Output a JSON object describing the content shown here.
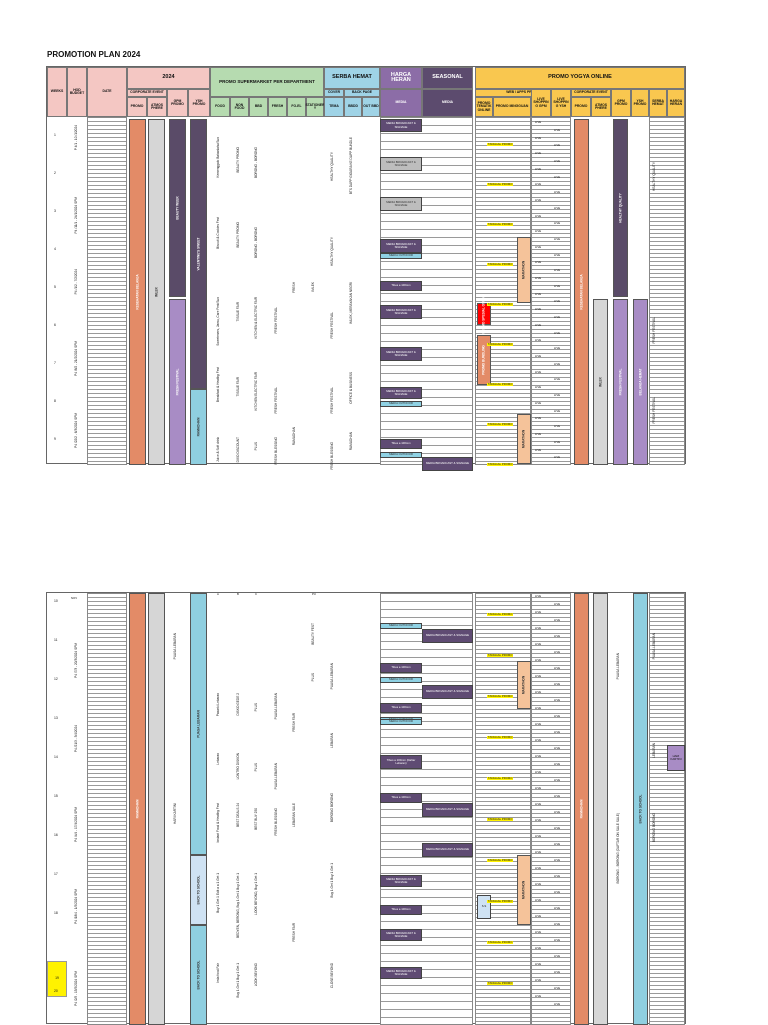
{
  "title": "PROMOTION PLAN 2024",
  "colors": {
    "header_pink": "#f4c7c3",
    "header_green": "#b6dbb0",
    "header_blue": "#9fd3e6",
    "header_purple": "#8c6da7",
    "header_dark": "#5c4b6e",
    "header_yellow": "#f9c74f",
    "bar_orange": "#e38b67",
    "bar_grey": "#d6d6d6",
    "bar_dark": "#5a4b68",
    "bar_lilac": "#a88cc5",
    "bar_teal": "#8fcfe0",
    "bar_peach": "#f5c39a",
    "highlight_yellow": "#fff200",
    "box_purple": "#5f4b73",
    "box_grey": "#bdbdbd",
    "box_teal": "#8fd1e3",
    "box_red": "#ff0000"
  },
  "headers": {
    "weeks": "WEEKS",
    "hod_budget": "HOD BUDGET",
    "date": "DATE",
    "year": "2024",
    "corporate_event": "CORPORATE EVENT",
    "promo": "PROMO",
    "atmosphere": "ATMOS PHERE",
    "gpm_promo": "GPM PROMO",
    "ysh_promo": "YSH PROMO",
    "promo_supermarket": "PROMO SUPERMARKET PER DEPARTMENT",
    "food": "FOOD",
    "non_food": "NON FOOD",
    "bbd": "BBD",
    "fresh": "FRESH",
    "fo_el": "FO-EL",
    "stationery": "STATIONER Y",
    "serba_hemat": "SERBA HEMAT",
    "cover": "COVER",
    "back_page": "BACK PAGE",
    "tema": "TEMA",
    "bbd_col": "BBDD",
    "out_bbd": "OUT BBD",
    "harga_heran": "HARGA HERAN",
    "seasonal": "SEASONAL",
    "media": "MEDIA",
    "promo_yogya_online": "PROMO YOGYA ONLINE",
    "web_apps_promo": "WEB / APPS PROMO",
    "promo_tematik_online": "PROMO TEMATIK ONLINE",
    "promo_mingguan": "PROMO MINGGUAN",
    "live_shopping_gpm": "LIVE SHOPPIN G GPM",
    "live_shopping_ysh": "LIVE SHOPPIN G YSH",
    "corporate_event_2": "CORPORATE EVENT",
    "promo_2": "PROMO",
    "atmosphere_2": "ATMOS PHERE",
    "gpm_promo_2": "GPM PROMO",
    "ysh_promo_2": "YSH PROMO",
    "serba_hemat_2": "SERBA HEMAT",
    "harga_heran_2": "HARGA HERAN"
  },
  "weeks_top": [
    "1",
    "2",
    "3",
    "4",
    "5",
    "6",
    "7",
    "8",
    "9"
  ],
  "weeks_bottom": [
    "10",
    "11",
    "12",
    "13",
    "14",
    "15",
    "16",
    "17",
    "18",
    "19",
    "20"
  ],
  "budgets_top": [
    "P 4/1 - 10 /1/2024",
    "P4 /11/1 - 24/1/2024 SPM",
    "P4 /1/2 - 7/2/2024",
    "P4 /8/2 - 21/2/2024 SPM",
    "P4 /22/2 - 6/3/2024 SPM"
  ],
  "budgets_bottom": [
    "P4 /7/3 - 20/3/2024 SPM",
    "P4 /21/3 - 3/4/2024",
    "P4 /4/4 - 17/4/2024 SPM",
    "P4 /18/4 - 1/5/2024 SPM",
    "P4 /2/5 - 15/5/2024 SPM"
  ],
  "vertical_labels": {
    "kesehatan_belanja": "KESEHATAN BELANJA",
    "beauty_week": "BEAUTY WEEK",
    "imlek": "IMLEK",
    "valentine": "VALENTINE'S SWEET",
    "fresh_festival": "FRESH FESTIVAL",
    "ramadhan": "RAMADHAN",
    "puasa_lebaran": "PUASA LEBARAN",
    "back_to_school": "BACK TO SCHOOL",
    "hari_kartini": "HARI KARTINI",
    "harbolnas": "HARI BELANJA",
    "healthy_quality": "HEALTHY QUALITY",
    "marathon": "MARATHON",
    "promo_bundling": "PROMO BUNDLING",
    "belanja_hemat": "BELANJA HEMAT",
    "fresh_festival_2": "FRESH FESTIVAL",
    "back_to_school_2": "BACK TO SCHOOL",
    "puasa_lebaran_2": "PUASA LEBARAN"
  },
  "media_items": {
    "media_broadcast": "MEDIA BROADCAST & SIGNAGE",
    "media_outdoor": "MEDIA OUTDOOR",
    "tibes": "Tibes a 100mm",
    "tibes_lebaran": "Tibes a 100mm (Daftar Lebaran)",
    "media_online": "MEDIA ONLINE",
    "live": "LIVE",
    "tanggal_promo": "TANGGAL PROMO",
    "promo_spesial": "PROMO SPESIAL ONLINE",
    "ss": "S.S"
  },
  "dept_items_top": {
    "food_1": "Kemenggalo Bahanlahu/Sun",
    "food_2": "Biscuit & Cookies Fest",
    "food_3": "Sweeteners, Jamu, Care Fest/Sun",
    "food_4": "Breakfast & Healthy Fest",
    "food_5": "Juice & Soft drink",
    "nonfood_1": "BEAUTY PROMO",
    "nonfood_2": "BEAUTY PROMO",
    "nonfood_3": "TISSUE FAIR",
    "nonfood_4": "TISSUE FAIR",
    "nonfood_5": "DIXO DISCOUNT",
    "bbd_1": "BORONG - BORONG",
    "bbd_2": "BORONG - BORONG",
    "bbd_3": "KITCHEN & ELECTRIC FAIR",
    "bbd_4": "KITCHEN ELECTRIC FAIR",
    "bbd_5": "PLUS",
    "fresh_1": "FRESH FESTIVAL",
    "fresh_2": "FRESH FESTIVAL",
    "fresh_3": "FRESH BLESSING",
    "tema_1": "HEALTHY QUALITY",
    "tema_2": "HEALTHY QUALITY",
    "tema_3": "FRESH FESTIVAL",
    "tema_4": "FRESH FESTIVAL",
    "tema_5": "FRESH BLESSING",
    "bbdd_1": "BTS DAPP GIGARA KE DAPP BUNDLE",
    "bbdd_2": "IMLEK, MERAYAKAN NEGRI",
    "bbdd_3": "OFFICE & BUSINESS",
    "bbdd_4": "RAMADHAN",
    "fresh_mid": "FRESH",
    "imlek_mid": "IMLEK",
    "ramadhan_mid": "RAMADHAN"
  },
  "dept_items_bottom": {
    "food_1": "Pasarki Lebaran",
    "food_2": "Lebaran",
    "food_3": "Instant Food & Healthy Fest",
    "food_4": "Buy 1 Get 1 Edit a a 1 Get 1",
    "food_5": "Ieda food Fair",
    "nonfood_1": "DISKO GEDE 2",
    "nonfood_2": "LONTRO DISKON",
    "nonfood_3": "BEST DEALS 24",
    "nonfood_4": "BEDYEN, BERONG, Buy 1 Get 1 Buy 1 Get 1",
    "nonfood_5": "Buy 1 Get 1 Buy 1 Get 1",
    "bbd_1": "PLUS",
    "bbd_2": "PLUS",
    "bbd_3": "BEST BUY 250",
    "bbd_4": "LOOK BEYOND, Buy 1 Get 1",
    "bbd_5": "LOOK BEYOND",
    "fresh_1": "PUASA LEBARAN",
    "fresh_2": "PUASA LEBARAN",
    "fresh_3": "FRESH BLESSING",
    "fo_1": "FRESH FAIR",
    "fo_2": "LEBARAN SALE",
    "fo_3": "FRESH FAIR",
    "stationery_1": "BEAUTY FEST",
    "stationery_2": "PLUS",
    "tema_1": "PUASA LEBARAN",
    "tema_2": "LEBARAN",
    "tema_3": "BORONG BORONG",
    "tema_4": "Buy 1 Get 1 Buy 1 Get 1",
    "tema_5": "CLOSE BEYOND",
    "harbolnas_2": "BORONG - BORONG (DAFTAR ON SALE SALE)",
    "lebaran_3": "HARI BELANJA (DAFTAR ON SALE)"
  },
  "misc": {
    "nov": "NOV",
    "a1": "A",
    "b1": "B",
    "c1": "C",
    "pl": "PU",
    "highlight_week": "19"
  }
}
